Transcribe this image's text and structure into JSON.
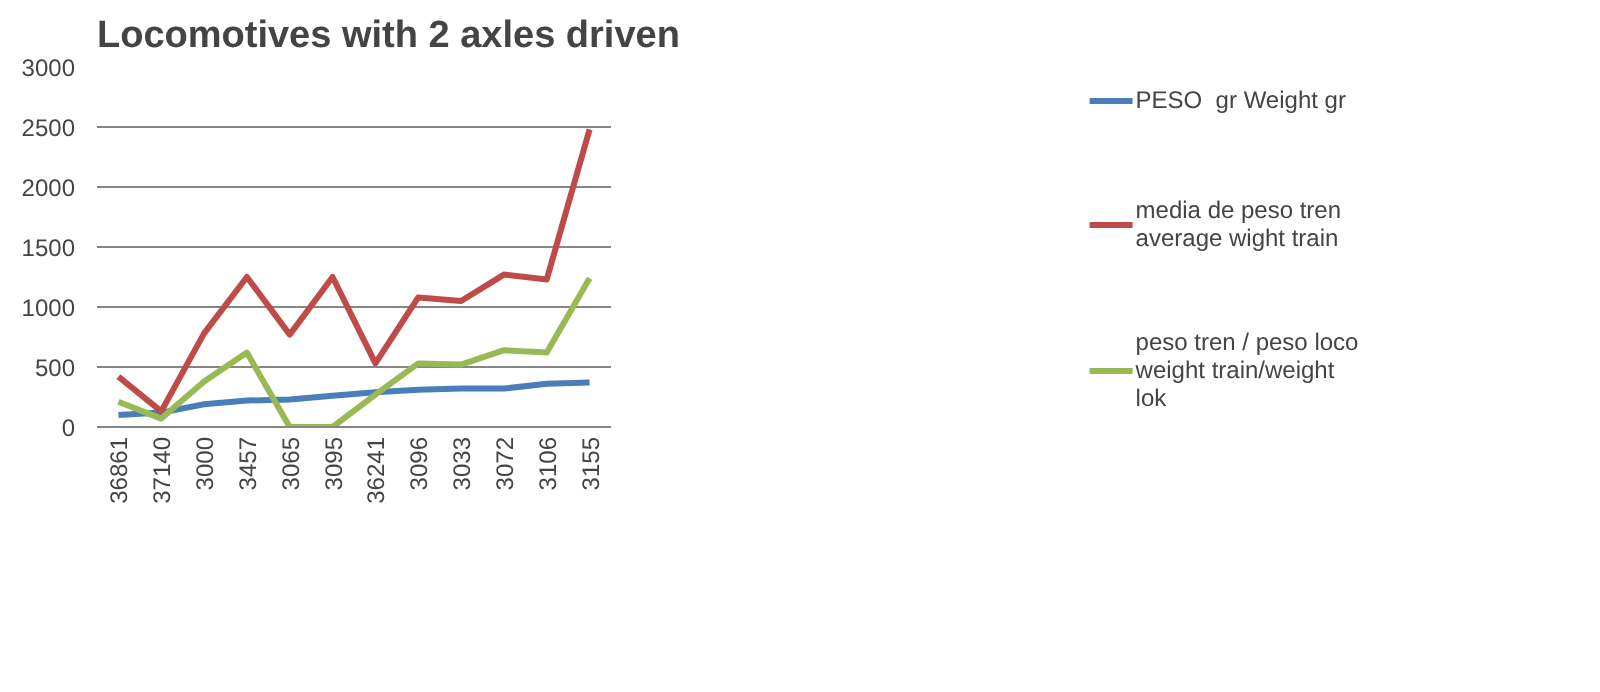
{
  "chart_data": {
    "type": "line",
    "title": "Locomotives with 2 axles driven",
    "categories": [
      "36861",
      "37140",
      "3000",
      "3457",
      "3065",
      "3095",
      "36241",
      "3096",
      "3033",
      "3072",
      "3106",
      "3155"
    ],
    "series": [
      {
        "name": "PESO  gr Weight gr",
        "color": "#4a7ebb",
        "values": [
          100,
          120,
          190,
          220,
          230,
          260,
          290,
          310,
          320,
          320,
          360,
          370
        ]
      },
      {
        "name": "media de peso tren average wight train",
        "color": "#be4b48",
        "values": [
          420,
          130,
          780,
          1250,
          770,
          1250,
          530,
          1080,
          1050,
          1270,
          1230,
          2480
        ]
      },
      {
        "name": "peso tren / peso loco weight train/weight lok",
        "color": "#98b954",
        "values": [
          210,
          70,
          380,
          620,
          0,
          0,
          270,
          530,
          520,
          640,
          620,
          1240
        ]
      }
    ],
    "ylim": [
      0,
      3000
    ],
    "yticks": [
      0,
      500,
      1000,
      1500,
      2000,
      2500,
      3000
    ],
    "grid": "y",
    "legend": "right",
    "line_style": "solid",
    "marker": "none"
  }
}
